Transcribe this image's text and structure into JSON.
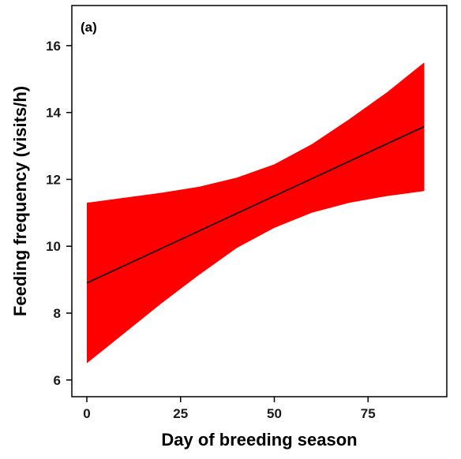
{
  "chart_data": {
    "type": "line",
    "panel_label": "(a)",
    "xlabel": "Day of breeding season",
    "ylabel": "Feeding frequency (visits/h)",
    "xlim": [
      -4,
      96
    ],
    "ylim": [
      5.5,
      17.2
    ],
    "xticks": [
      0,
      25,
      50,
      75
    ],
    "yticks": [
      6,
      8,
      10,
      12,
      14,
      16
    ],
    "grid": false,
    "series": [
      {
        "kind": "fit",
        "x": [
          0,
          90
        ],
        "y": [
          8.9,
          13.58
        ],
        "color": "#000000"
      },
      {
        "kind": "confidence_band",
        "x": [
          0,
          10,
          20,
          30,
          40,
          50,
          60,
          70,
          80,
          90
        ],
        "lower": [
          6.5,
          7.4,
          8.3,
          9.15,
          9.95,
          10.55,
          11.0,
          11.3,
          11.5,
          11.65
        ],
        "upper": [
          11.3,
          11.45,
          11.6,
          11.78,
          12.05,
          12.45,
          13.05,
          13.8,
          14.6,
          15.5
        ],
        "color": "#ff0000"
      }
    ]
  }
}
